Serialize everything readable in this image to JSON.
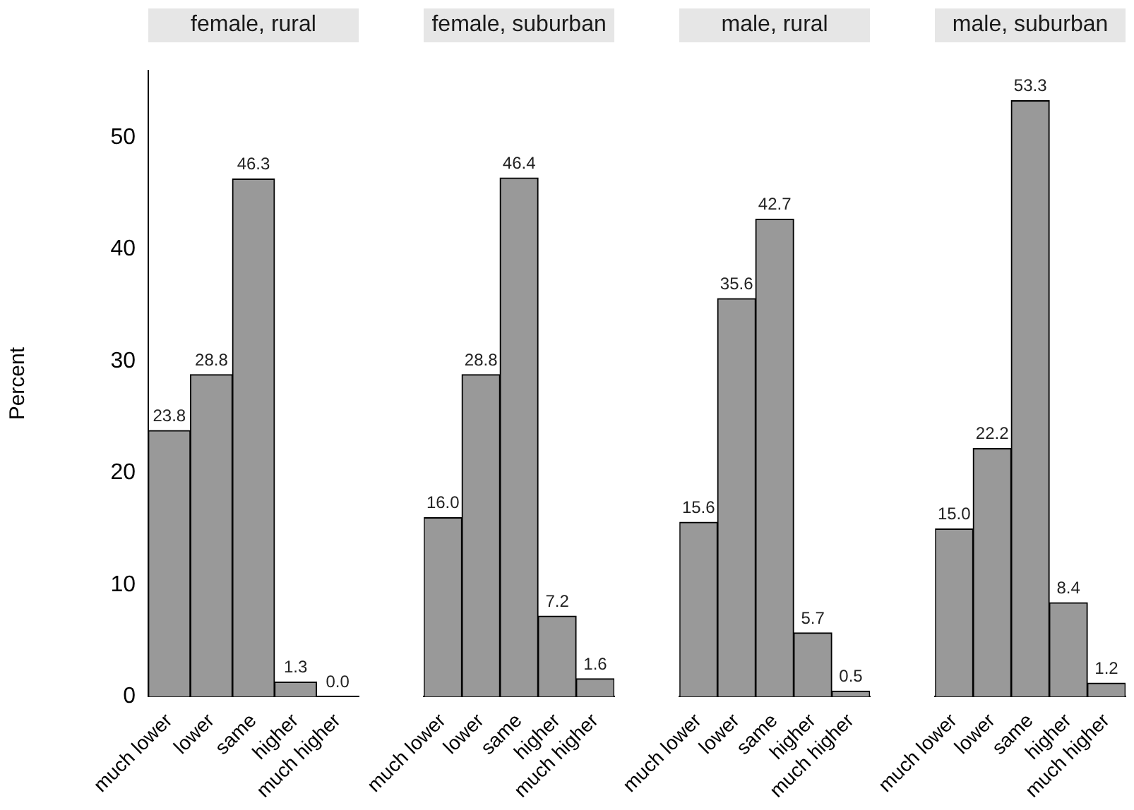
{
  "chart_data": [
    {
      "type": "bar",
      "title": "female, rural",
      "ylabel": "Percent",
      "categories": [
        "much lower",
        "lower",
        "same",
        "higher",
        "much higher"
      ],
      "values": [
        23.8,
        28.8,
        46.3,
        1.3,
        0.0
      ],
      "value_labels": [
        "23.8",
        "28.8",
        "46.3",
        "1.3",
        "0.0"
      ],
      "color": "#999999",
      "ylim": [
        0,
        56
      ],
      "yticks": [
        0,
        10,
        20,
        30,
        40,
        50
      ],
      "grid": false,
      "legend": false
    },
    {
      "type": "bar",
      "title": "female, suburban",
      "categories": [
        "much lower",
        "lower",
        "same",
        "higher",
        "much higher"
      ],
      "values": [
        16.0,
        28.8,
        46.4,
        7.2,
        1.6
      ],
      "value_labels": [
        "16.0",
        "28.8",
        "46.4",
        "7.2",
        "1.6"
      ],
      "color": "#999999",
      "tick_labels": "x",
      "grid": false,
      "legend": false
    },
    {
      "type": "bar",
      "title": "male, rural",
      "categories": [
        "much lower",
        "lower",
        "same",
        "higher",
        "much higher"
      ],
      "values": [
        15.6,
        35.6,
        42.7,
        5.7,
        0.5
      ],
      "value_labels": [
        "15.6",
        "35.6",
        "42.7",
        "5.7",
        "0.5"
      ],
      "color": "#999999",
      "tick_labels": "x",
      "grid": false,
      "legend": false
    },
    {
      "type": "bar",
      "title": "male, suburban",
      "categories": [
        "much lower",
        "lower",
        "same",
        "higher",
        "much higher"
      ],
      "values": [
        15.0,
        22.2,
        53.3,
        8.4,
        1.2
      ],
      "value_labels": [
        "15.0",
        "22.2",
        "53.3",
        "8.4",
        "1.2"
      ],
      "color": "#999999",
      "tick_labels": "x",
      "grid": false,
      "legend": false
    }
  ]
}
